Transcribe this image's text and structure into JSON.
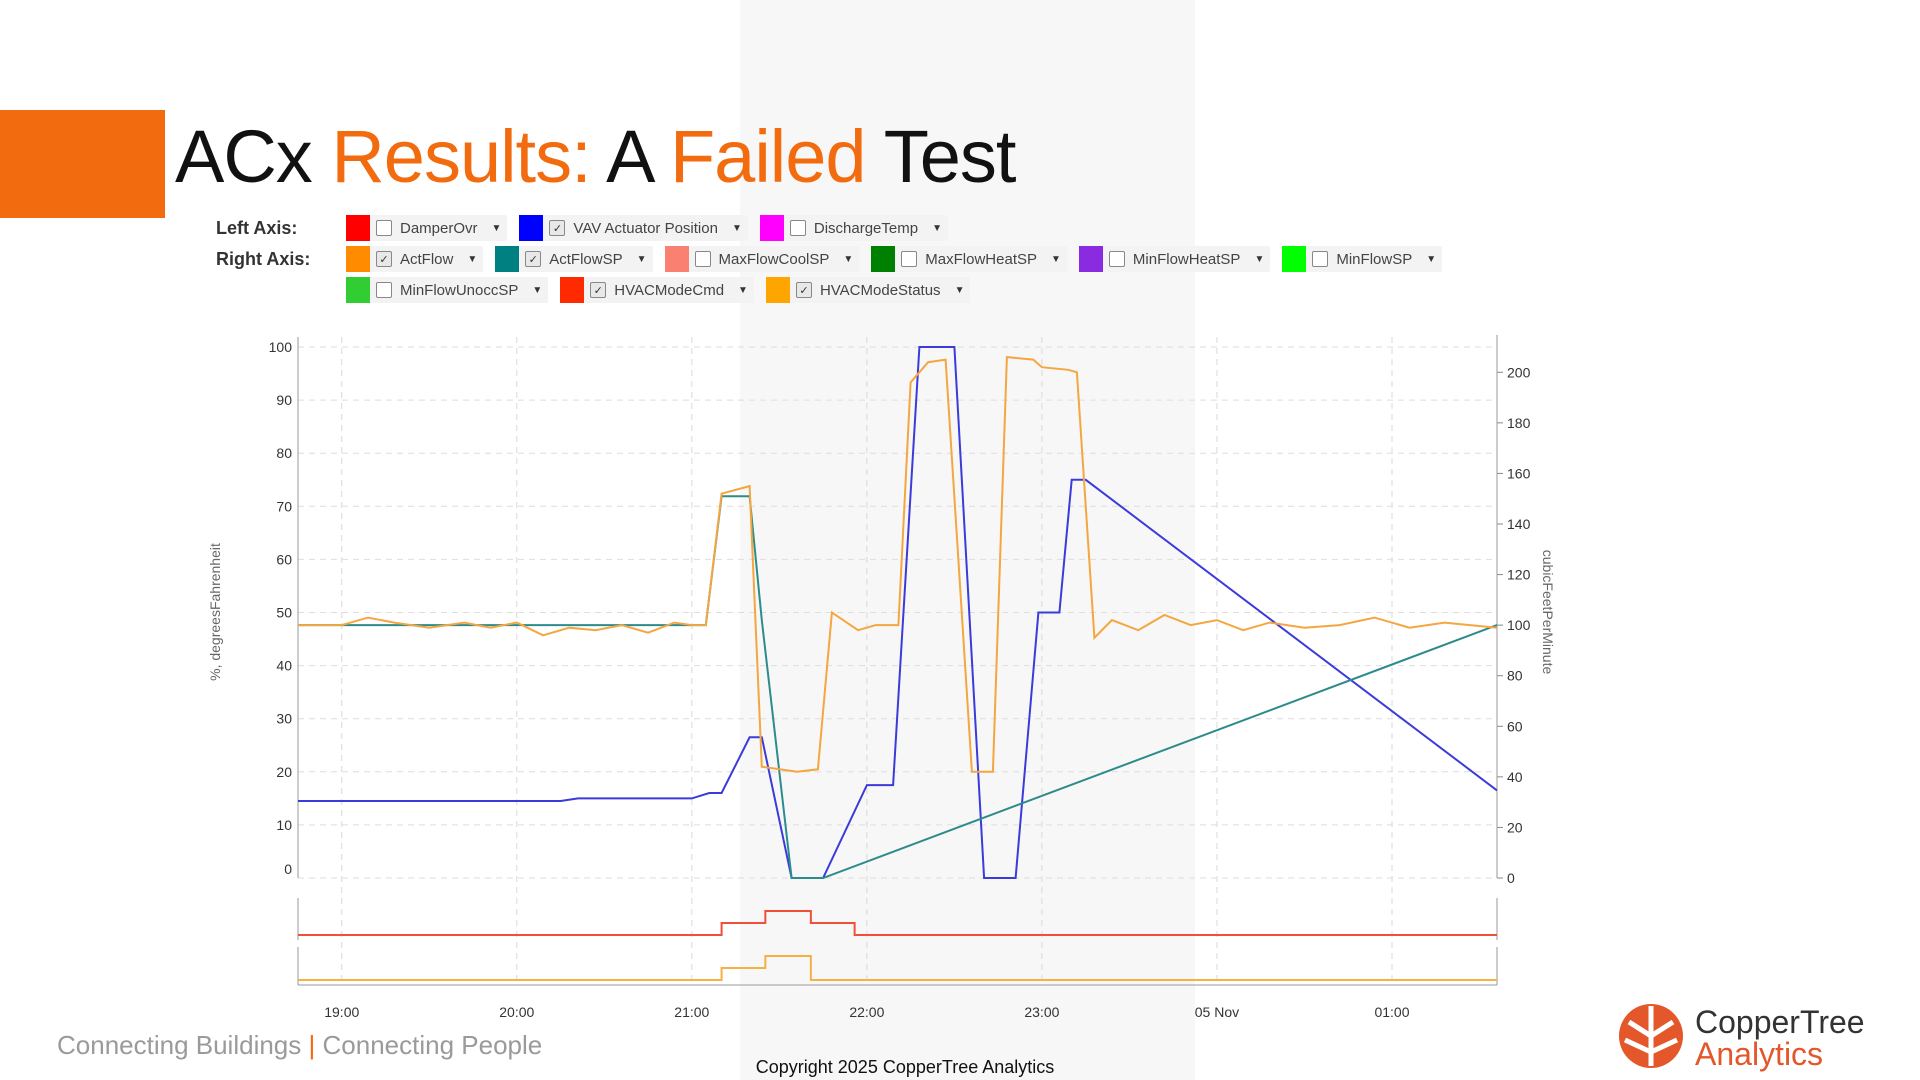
{
  "slide": {
    "title_parts": [
      "ACx ",
      "Results:",
      " A ",
      "Failed",
      " Test"
    ],
    "footer_left_a": "Connecting Buildings",
    "footer_sep": "|",
    "footer_left_b": "Connecting People",
    "copyright": "Copyright 2025 CopperTree Analytics",
    "logo_line1": "CopperTree",
    "logo_line2": "Analytics",
    "accent_color": "#f26b0f"
  },
  "legend": {
    "left_label": "Left Axis:",
    "right_label": "Right Axis:",
    "left": [
      {
        "name": "DamperOvr",
        "color": "#ff0000",
        "checked": false
      },
      {
        "name": "VAV Actuator Position",
        "color": "#0000ff",
        "checked": true
      },
      {
        "name": "DischargeTemp",
        "color": "#ff00ff",
        "checked": false
      }
    ],
    "right_row1": [
      {
        "name": "ActFlow",
        "color": "#ff8c00",
        "checked": true
      },
      {
        "name": "ActFlowSP",
        "color": "#008080",
        "checked": true
      },
      {
        "name": "MaxFlowCoolSP",
        "color": "#fa8072",
        "checked": false
      },
      {
        "name": "MaxFlowHeatSP",
        "color": "#008000",
        "checked": false
      },
      {
        "name": "MinFlowHeatSP",
        "color": "#8a2be2",
        "checked": false
      },
      {
        "name": "MinFlowSP",
        "color": "#00ff00",
        "checked": false
      }
    ],
    "right_row2": [
      {
        "name": "MinFlowUnoccSP",
        "color": "#32cd32",
        "checked": false
      },
      {
        "name": "HVACModeCmd",
        "color": "#ff2a00",
        "checked": true
      },
      {
        "name": "HVACModeStatus",
        "color": "#ffa500",
        "checked": true
      }
    ]
  },
  "chart_data": {
    "type": "line",
    "x_ticks": [
      "19:00",
      "20:00",
      "21:00",
      "22:00",
      "23:00",
      "05 Nov",
      "01:00"
    ],
    "x_range_hours": [
      18.75,
      25.6
    ],
    "y_left": {
      "label": "%, degreesFahrenheit",
      "ticks": [
        0,
        10,
        20,
        30,
        40,
        50,
        60,
        70,
        80,
        90,
        100
      ],
      "range": [
        0,
        100
      ]
    },
    "y_right": {
      "label": "cubicFeetPerMinute",
      "ticks": [
        0,
        20,
        40,
        60,
        80,
        100,
        120,
        140,
        160,
        180,
        200
      ],
      "range": [
        0,
        210
      ]
    },
    "grid": true,
    "series": [
      {
        "name": "VAV Actuator Position",
        "axis": "left",
        "color": "#3b3bdb",
        "x": [
          18.75,
          20.25,
          20.35,
          21.0,
          21.1,
          21.17,
          21.33,
          21.4,
          21.57,
          21.75,
          22.0,
          22.15,
          22.3,
          22.5,
          22.67,
          22.85,
          22.98,
          23.1,
          23.17,
          23.25,
          25.6
        ],
        "y": [
          14.5,
          14.5,
          15,
          15,
          16,
          16,
          26.5,
          26.5,
          0,
          0,
          17.5,
          17.5,
          100,
          100,
          0,
          0,
          50,
          50,
          75,
          75,
          16.5
        ]
      },
      {
        "name": "ActFlowSP",
        "axis": "right",
        "color": "#2e8b8b",
        "x": [
          18.75,
          21.08,
          21.17,
          21.33,
          21.4,
          21.57,
          21.75,
          25.6
        ],
        "y": [
          100,
          100,
          151,
          151,
          102,
          0,
          0,
          100
        ]
      },
      {
        "name": "ActFlow",
        "axis": "right",
        "color": "#f4a640",
        "x": [
          18.75,
          19.0,
          19.15,
          19.3,
          19.5,
          19.7,
          19.85,
          20.0,
          20.15,
          20.3,
          20.45,
          20.6,
          20.75,
          20.9,
          21.0,
          21.08,
          21.17,
          21.33,
          21.4,
          21.6,
          21.72,
          21.8,
          21.95,
          22.05,
          22.18,
          22.25,
          22.35,
          22.45,
          22.6,
          22.72,
          22.8,
          22.95,
          23.0,
          23.15,
          23.2,
          23.3,
          23.4,
          23.55,
          23.7,
          23.85,
          24.0,
          24.15,
          24.3,
          24.5,
          24.7,
          24.9,
          25.1,
          25.3,
          25.6
        ],
        "y": [
          100,
          100,
          103,
          101,
          99,
          101,
          99,
          101,
          96,
          99,
          98,
          100,
          97,
          101,
          100,
          100,
          152,
          155,
          44,
          42,
          43,
          105,
          98,
          100,
          100,
          196,
          204,
          205,
          42,
          42,
          206,
          205,
          202,
          201,
          200,
          95,
          102,
          98,
          104,
          100,
          102,
          98,
          101,
          99,
          100,
          103,
          99,
          101,
          99
        ]
      },
      {
        "name": "HVACModeCmd",
        "axis": "sub1",
        "color": "#f0503a",
        "steps": [
          [
            18.75,
            0
          ],
          [
            21.17,
            1
          ],
          [
            21.42,
            2
          ],
          [
            21.68,
            1
          ],
          [
            21.93,
            0
          ],
          [
            25.6,
            0
          ]
        ]
      },
      {
        "name": "HVACModeStatus",
        "axis": "sub2",
        "color": "#f7b044",
        "steps": [
          [
            18.75,
            0
          ],
          [
            21.17,
            1
          ],
          [
            21.42,
            2
          ],
          [
            21.68,
            0
          ],
          [
            25.6,
            0
          ]
        ]
      }
    ]
  }
}
